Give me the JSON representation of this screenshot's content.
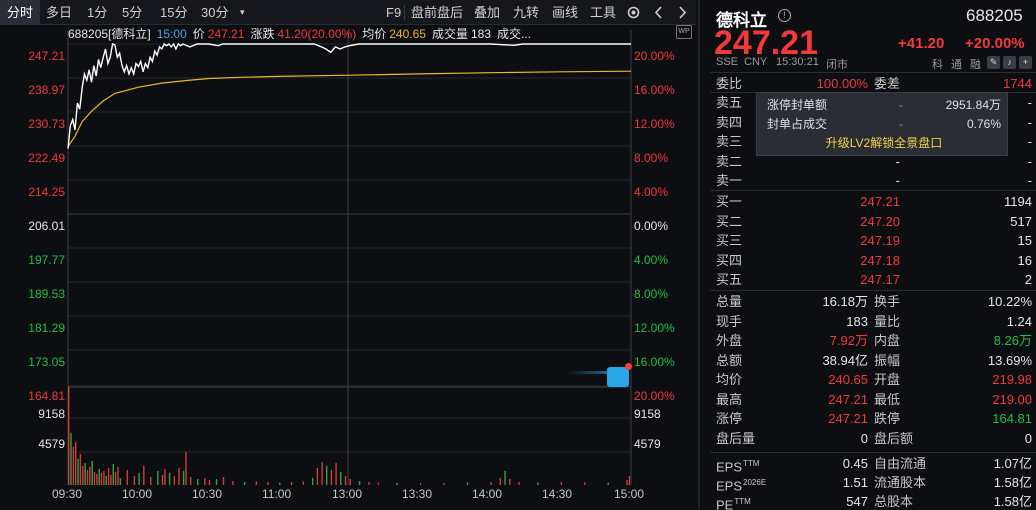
{
  "toolbar": {
    "left_items": [
      "分时",
      "多日",
      "1分",
      "5分",
      "15分",
      "30分"
    ],
    "right_items": [
      "F9",
      "盘前盘后",
      "叠加",
      "九转",
      "画线",
      "工具"
    ]
  },
  "info": {
    "code_name": "688205[德科立]",
    "time": "15:00",
    "price_label": "价",
    "price": "247.21",
    "change_label": "涨跌",
    "change": "41.20(20.00%)",
    "avg_label": "均价",
    "avg": "240.65",
    "vol_label": "成交量",
    "vol": "183",
    "amount_label": "成交..."
  },
  "axis": {
    "prices": [
      "247.21",
      "238.97",
      "230.73",
      "222.49",
      "214.25",
      "206.01",
      "197.77",
      "189.53",
      "181.29",
      "173.05",
      "164.81"
    ],
    "pcts": [
      "20.00%",
      "16.00%",
      "12.00%",
      "8.00%",
      "4.00%",
      "0.00%",
      "4.00%",
      "8.00%",
      "12.00%",
      "16.00%",
      "20.00%"
    ],
    "vol_left": [
      "9158",
      "4579"
    ],
    "vol_right": [
      "9158",
      "4579"
    ],
    "times": [
      "09:30",
      "10:00",
      "10:30",
      "11:00",
      "13:00",
      "13:30",
      "14:00",
      "14:30",
      "15:00"
    ]
  },
  "chart_data": {
    "type": "line",
    "prev_close": 206.01,
    "ylim": [
      164.81,
      247.21
    ],
    "x": [
      "09:30",
      "10:00",
      "10:30",
      "11:00",
      "13:00",
      "13:30",
      "14:00",
      "14:30",
      "15:00"
    ],
    "series": [
      {
        "name": "价",
        "color": "#ffffff",
        "values": [
          222.49,
          242.5,
          247.21,
          247.21,
          246.2,
          247.21,
          247.21,
          247.21,
          247.21
        ]
      },
      {
        "name": "均价",
        "color": "#f0b429",
        "values": [
          222.49,
          235.6,
          238.4,
          239.3,
          239.8,
          240.1,
          240.3,
          240.5,
          240.65
        ]
      }
    ],
    "volume_max": 9158
  },
  "panel": {
    "name": "德科立",
    "code": "688205",
    "price": "247.21",
    "change": "+41.20",
    "change_pct": "+20.00%",
    "exchange": "SSE",
    "currency": "CNY",
    "time": "15:30:21",
    "status": "闭市",
    "tags": [
      "科",
      "通",
      "融"
    ],
    "weibi_label": "委比",
    "weibi": "100.00%",
    "weicha_label": "委差",
    "weicha": "1744",
    "sells": [
      {
        "label": "卖五",
        "price": "-",
        "vol": "-"
      },
      {
        "label": "卖四",
        "price": "-",
        "vol": "-"
      },
      {
        "label": "卖三",
        "price": "-",
        "vol": "-"
      },
      {
        "label": "卖二",
        "price": "-",
        "vol": "-"
      },
      {
        "label": "卖一",
        "price": "-",
        "vol": "-"
      }
    ],
    "buys": [
      {
        "label": "买一",
        "price": "247.21",
        "vol": "1194"
      },
      {
        "label": "买二",
        "price": "247.20",
        "vol": "517"
      },
      {
        "label": "买三",
        "price": "247.19",
        "vol": "15"
      },
      {
        "label": "买四",
        "price": "247.18",
        "vol": "16"
      },
      {
        "label": "买五",
        "price": "247.17",
        "vol": "2"
      }
    ],
    "overlay": {
      "row1_label": "涨停封单额",
      "row1_value": "2951.84万",
      "row2_label": "封单占成交",
      "row2_value": "0.76%",
      "link": "升级LV2解锁全景盘口"
    },
    "stats": [
      {
        "k1": "总量",
        "v1": "16.18万",
        "c1": "white",
        "k2": "换手",
        "v2": "10.22%",
        "c2": "white"
      },
      {
        "k1": "现手",
        "v1": "183",
        "c1": "white",
        "k2": "量比",
        "v2": "1.24",
        "c2": "white"
      },
      {
        "k1": "外盘",
        "v1": "7.92万",
        "c1": "red",
        "k2": "内盘",
        "v2": "8.26万",
        "c2": "green"
      },
      {
        "k1": "总额",
        "v1": "38.94亿",
        "c1": "white",
        "k2": "振幅",
        "v2": "13.69%",
        "c2": "white"
      },
      {
        "k1": "均价",
        "v1": "240.65",
        "c1": "red",
        "k2": "开盘",
        "v2": "219.98",
        "c2": "red"
      },
      {
        "k1": "最高",
        "v1": "247.21",
        "c1": "red",
        "k2": "最低",
        "v2": "219.00",
        "c2": "red"
      },
      {
        "k1": "涨停",
        "v1": "247.21",
        "c1": "red",
        "k2": "跌停",
        "v2": "164.81",
        "c2": "green"
      },
      {
        "k1": "盘后量",
        "v1": "0",
        "c1": "white",
        "k2": "盘后额",
        "v2": "0",
        "c2": "white"
      }
    ],
    "fin": [
      {
        "k1": "EPS",
        "s1": "TTM",
        "v1": "0.45",
        "k2": "自由流通",
        "v2": "1.07亿"
      },
      {
        "k1": "EPS",
        "s1": "2026E",
        "v1": "1.51",
        "k2": "流通股本",
        "v2": "1.58亿"
      },
      {
        "k1": "PE",
        "s1": "TTM",
        "v1": "547",
        "k2": "总股本",
        "v2": "1.58亿"
      }
    ]
  }
}
